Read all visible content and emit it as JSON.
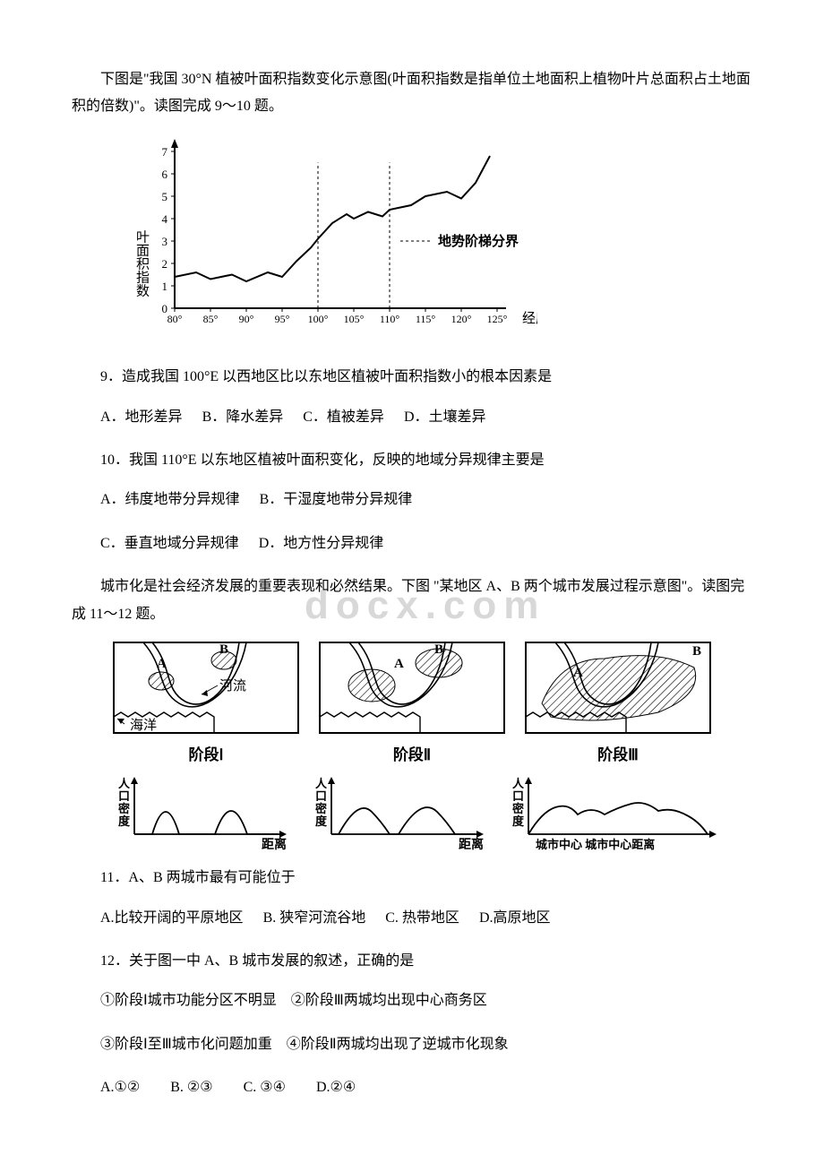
{
  "intro1": "下图是\"我国 30°N 植被叶面积指数变化示意图(叶面积指数是指单位土地面积上植物叶片总面积占土地面积的倍数)\"。读图完成 9～10 题。",
  "chart1": {
    "type": "line",
    "ylabel": "叶面积指数",
    "xlabel": "经度",
    "legend": "地势阶梯分界",
    "yticks": [
      0,
      1,
      2,
      3,
      4,
      5,
      6,
      7
    ],
    "xticks": [
      "80°",
      "85°",
      "90°",
      "95°",
      "100°",
      "105°",
      "110°",
      "115°",
      "120°",
      "125°"
    ],
    "xvals": [
      80,
      85,
      90,
      95,
      100,
      105,
      110,
      115,
      120,
      125
    ],
    "series": [
      {
        "x": 80,
        "y": 1.4
      },
      {
        "x": 83,
        "y": 1.6
      },
      {
        "x": 85,
        "y": 1.3
      },
      {
        "x": 88,
        "y": 1.5
      },
      {
        "x": 90,
        "y": 1.2
      },
      {
        "x": 93,
        "y": 1.6
      },
      {
        "x": 95,
        "y": 1.4
      },
      {
        "x": 97,
        "y": 2.1
      },
      {
        "x": 99,
        "y": 2.7
      },
      {
        "x": 100,
        "y": 3.1
      },
      {
        "x": 102,
        "y": 3.8
      },
      {
        "x": 104,
        "y": 4.2
      },
      {
        "x": 105,
        "y": 4.0
      },
      {
        "x": 107,
        "y": 4.3
      },
      {
        "x": 109,
        "y": 4.1
      },
      {
        "x": 110,
        "y": 4.4
      },
      {
        "x": 113,
        "y": 4.6
      },
      {
        "x": 115,
        "y": 5.0
      },
      {
        "x": 118,
        "y": 5.2
      },
      {
        "x": 120,
        "y": 4.9
      },
      {
        "x": 122,
        "y": 5.6
      },
      {
        "x": 124,
        "y": 6.8
      }
    ],
    "dashed_x": [
      100,
      110
    ],
    "line_color": "#000000",
    "axis_color": "#000000",
    "dash_color": "#000000",
    "label_fontsize": 15,
    "tick_fontsize": 13,
    "ylim": [
      0,
      7
    ],
    "xlim": [
      80,
      125
    ]
  },
  "q9": {
    "stem": "9．造成我国 100°E 以西地区比以东地区植被叶面积指数小的根本因素是",
    "A": "A．地形差异",
    "B": "B．降水差异",
    "C": "C．植被差异",
    "D": "D．土壤差异"
  },
  "q10": {
    "stem": "10．我国 110°E 以东地区植被叶面积变化，反映的地域分异规律主要是",
    "A": "A．纬度地带分异规律",
    "B": "B．干湿度地带分异规律",
    "C": "C．垂直地域分异规律",
    "D": "D．地方性分异规律"
  },
  "intro2": "城市化是社会经济发展的重要表现和必然结果。下图 \"某地区 A、B 两个城市发展过程示意图\"。读图完成 11～12 题。",
  "watermark": "docx.com",
  "diagram": {
    "stage_labels": [
      "阶段Ⅰ",
      "阶段Ⅱ",
      "阶段Ⅲ"
    ],
    "labels": {
      "A": "A",
      "B": "B",
      "river": "河流",
      "sea": "海洋"
    },
    "density_label": "人口密度",
    "x_label": "距离",
    "x_label3": "城市中心   城市中心距离",
    "colors": {
      "border": "#000",
      "hatch": "#000",
      "water": "#fff",
      "bg": "#fff"
    }
  },
  "q11": {
    "stem": "11．A、B 两城市最有可能位于",
    "A": "A.比较开阔的平原地区",
    "B": "B. 狭窄河流谷地",
    "C": "C. 热带地区",
    "D": "D.高原地区"
  },
  "q12": {
    "stem": "12．关于图一中 A、B 城市发展的叙述，正确的是",
    "l1": "①阶段Ⅰ城市功能分区不明显　②阶段Ⅲ两城均出现中心商务区",
    "l2": "③阶段Ⅰ至Ⅲ城市化问题加重　④阶段Ⅱ两城均出现了逆城市化现象",
    "A": "A.①②",
    "B": "B. ②③",
    "C": "C. ③④",
    "D": "D.②④"
  }
}
